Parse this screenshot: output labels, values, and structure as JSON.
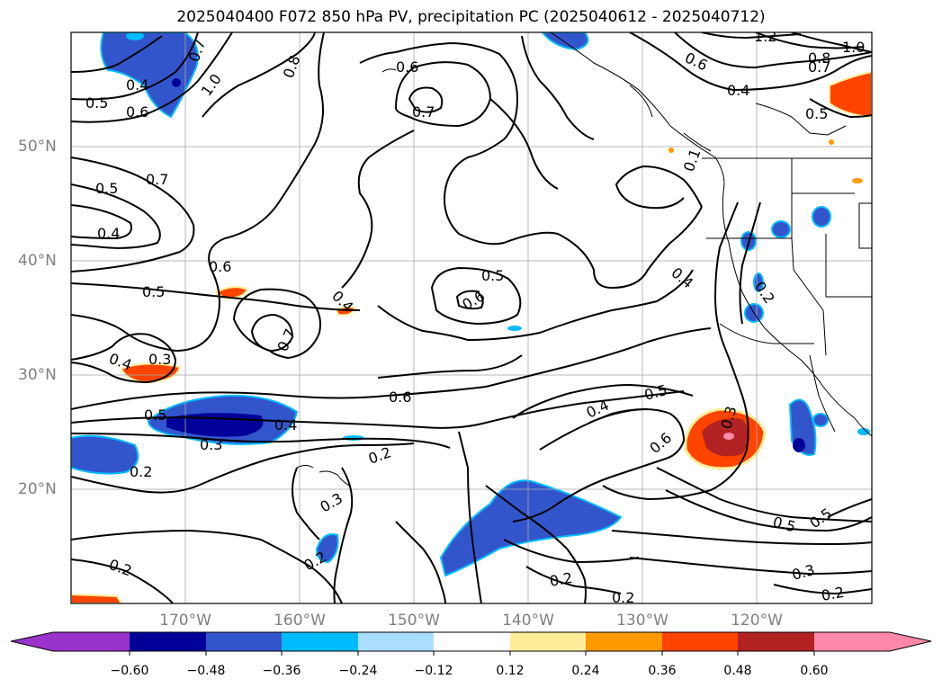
{
  "title": "2025040400 F072 850 hPa PV, precipitation PC (2025040612 - 2025040712)",
  "lat_labels": [
    "50°N",
    "40°N",
    "30°N",
    "20°N"
  ],
  "lon_labels": [
    "170°W",
    "160°W",
    "150°W",
    "140°W",
    "130°W",
    "120°W"
  ],
  "colorbar": {
    "ticks": [
      "−0.60",
      "−0.48",
      "−0.36",
      "−0.24",
      "−0.12",
      "0.12",
      "0.24",
      "0.36",
      "0.48",
      "0.60"
    ],
    "colors": [
      "#9933cc",
      "#000099",
      "#3355cc",
      "#00bbff",
      "#aaddff",
      "#ffffff",
      "#ffee99",
      "#ff9900",
      "#ff4400",
      "#b22222",
      "#ff88aa"
    ]
  },
  "contour_labels": [
    "0.4",
    "0.5",
    "0.6",
    "1.0",
    "0.7",
    "0.6",
    "0.7",
    "0.8",
    "0.6",
    "0.4",
    "1.2",
    "1.0",
    "0.8",
    "0.7",
    "0.5",
    "0.5",
    "0.7",
    "0.4",
    "0.6",
    "0.5",
    "0.5",
    "0.6",
    "0.4",
    "0.7",
    "0.3",
    "0.4",
    "0.6",
    "0.5",
    "0.4",
    "0.3",
    "0.2",
    "0.2",
    "0.3",
    "0.2",
    "0.4",
    "0.5",
    "0.6",
    "0.3",
    "0.4",
    "0.2",
    "0.5",
    "0.5",
    "0.3",
    "0.2",
    "0.2",
    "0.2",
    "0.1",
    "0.2"
  ]
}
